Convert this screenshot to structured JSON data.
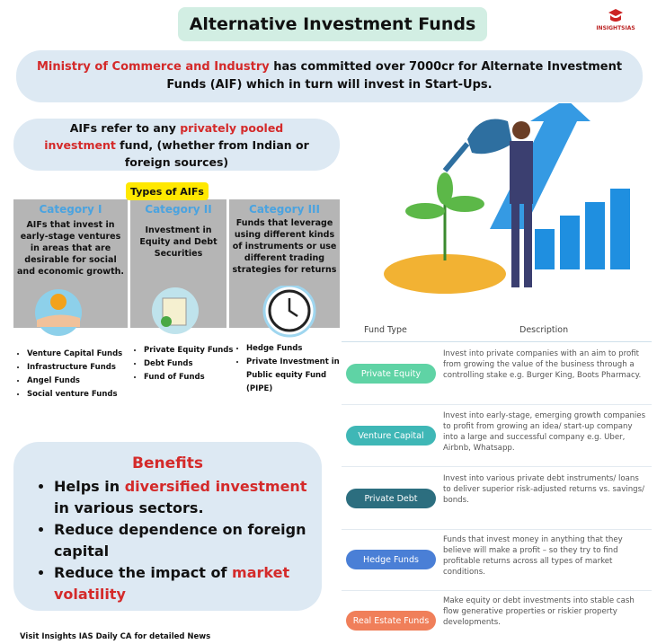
{
  "header": {
    "title": "Alternative Investment Funds",
    "logo": "INSIGHTSIAS"
  },
  "banner": {
    "highlight": "Ministry of Commerce and Industry",
    "text": " has committed over 7000cr for Alternate Investment Funds (AIF) which in turn will invest in Start-Ups."
  },
  "definition": {
    "before": "AIFs refer to any ",
    "highlight": "privately pooled investment",
    "after": " fund, (whether from Indian or foreign sources)"
  },
  "types": {
    "label": "Types of AIFs",
    "categories": [
      {
        "name": "Category I",
        "description": "AIFs that invest in early-stage ventures in areas that are desirable for social and economic growth.",
        "funds": [
          "Venture Capital Funds",
          "Infrastructure Funds",
          "Angel Funds",
          "Social venture Funds"
        ]
      },
      {
        "name": "Category II",
        "description": "Investment in Equity and Debt Securities",
        "funds": [
          "Private Equity Funds",
          "Debt Funds",
          "Fund of  Funds"
        ]
      },
      {
        "name": "Category III",
        "description": "Funds that leverage using different kinds of instruments or use different trading strategies for returns",
        "funds": [
          "Hedge Funds",
          "Private Investment in Public equity Fund (PIPE)"
        ]
      }
    ]
  },
  "benefits": {
    "title": "Benefits",
    "items": [
      [
        "Helps in ",
        "diversified investment",
        " in various sectors."
      ],
      [
        "Reduce dependence on foreign capital"
      ],
      [
        "Reduce the impact of ",
        "market volatility"
      ]
    ]
  },
  "footer": "Visit Insights IAS Daily CA for detailed News",
  "table": {
    "headers": [
      "Fund Type",
      "Description"
    ],
    "rows": [
      [
        "Private Equity",
        "Invest into private companies with an aim to profit from growing the value of the business through a controlling stake e.g. Burger King, Boots Pharmacy."
      ],
      [
        "Venture Capital",
        "Invest into early-stage, emerging growth companies to profit from growing an idea/ start-up company into a large and successful company e.g. Uber, Airbnb, Whatsapp."
      ],
      [
        "Private Debt",
        "Invest into various private debt instruments/ loans to deliver superior risk-adjusted returns vs. savings/ bonds."
      ],
      [
        "Hedge Funds",
        "Funds that invest money in anything that they believe will make a profit – so they try to find profitable returns across all types of market conditions."
      ],
      [
        "Real Estate Funds",
        "Make equity or debt investments into stable cash flow generative properties or riskier property developments."
      ]
    ]
  }
}
